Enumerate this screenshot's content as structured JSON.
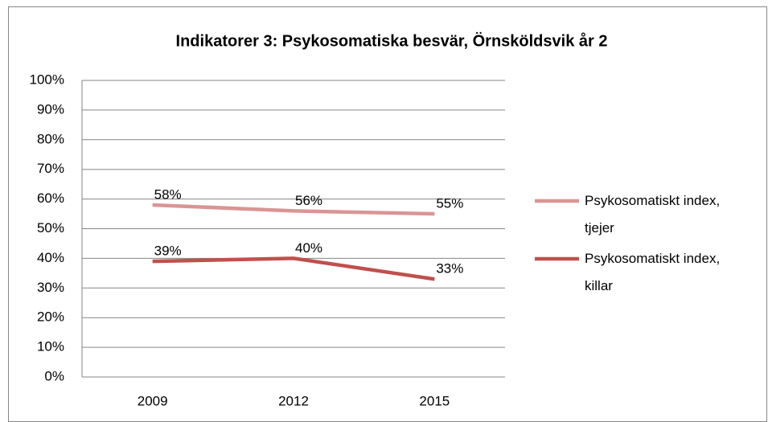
{
  "chart_data": {
    "type": "line",
    "title": "Indikatorer 3: Psykosomatiska besvär, Örnsköldsvik år 2",
    "categories": [
      "2009",
      "2012",
      "2015"
    ],
    "series": [
      {
        "name": "Psykosomatiskt index, tjejer",
        "color": "#d99594",
        "values": [
          58,
          56,
          55
        ],
        "value_labels": [
          "58%",
          "56%",
          "55%"
        ]
      },
      {
        "name": "Psykosomatiskt index, killar",
        "color": "#c0504d",
        "values": [
          39,
          40,
          33
        ],
        "value_labels": [
          "39%",
          "40%",
          "33%"
        ]
      }
    ],
    "ylim": [
      0,
      100
    ],
    "yticks": [
      {
        "value": 0,
        "label": "0%"
      },
      {
        "value": 10,
        "label": "10%"
      },
      {
        "value": 20,
        "label": "20%"
      },
      {
        "value": 30,
        "label": "30%"
      },
      {
        "value": 40,
        "label": "40%"
      },
      {
        "value": 50,
        "label": "50%"
      },
      {
        "value": 60,
        "label": "60%"
      },
      {
        "value": 70,
        "label": "70%"
      },
      {
        "value": 80,
        "label": "80%"
      },
      {
        "value": 90,
        "label": "90%"
      },
      {
        "value": 100,
        "label": "100%"
      }
    ],
    "grid": true,
    "legend": "right"
  }
}
